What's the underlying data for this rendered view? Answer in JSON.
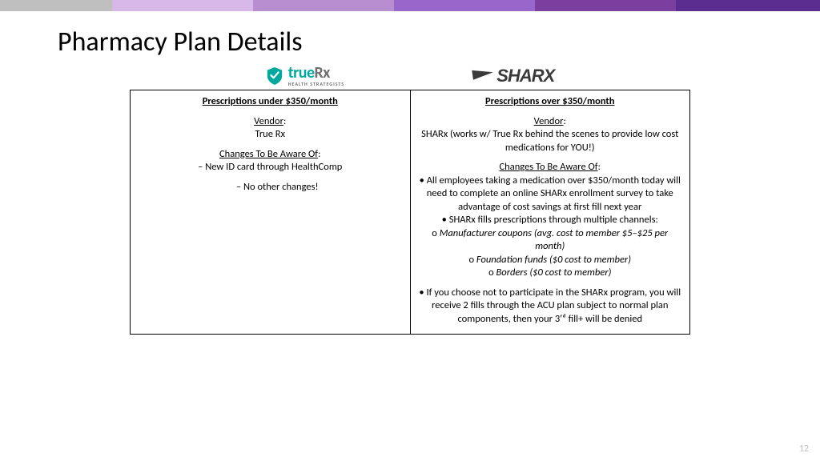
{
  "topbar_colors": [
    "#bfbfbf",
    "#d8b8e8",
    "#b98ed1",
    "#9966cc",
    "#7b3fa0",
    "#5c2d91"
  ],
  "topbar_widths": [
    140,
    176,
    176,
    176,
    176,
    180
  ],
  "title": "Pharmacy Plan Details",
  "logos": {
    "truerx_main_true": "true",
    "truerx_main_rx": "Rx",
    "truerx_sub": "HEALTH STRATEGISTS",
    "sharx": "SHARX"
  },
  "left": {
    "header": "Prescriptions under $350/month",
    "vendor_label": "Vendor",
    "vendor_value": "True Rx",
    "changes_label": "Changes To Be Aware Of",
    "changes": [
      "New ID card through HealthComp"
    ],
    "sub_changes": [
      "No other changes!"
    ]
  },
  "right": {
    "header": "Prescriptions over $350/month",
    "vendor_label": "Vendor",
    "vendor_value": "SHARx (works w/ True Rx behind the scenes to provide low cost medications for YOU!)",
    "changes_label": "Changes To Be Aware Of",
    "bullets": [
      "All employees taking a medication over $350/month today will need to complete an online SHARx enrollment survey to take advantage of cost savings at first fill next year",
      "SHARx fills prescriptions through multiple channels:"
    ],
    "channels": [
      "Manufacturer coupons (avg. cost to member $5–$25 per month)",
      "Foundation funds ($0 cost to member)",
      "Borders ($0 cost to member)"
    ],
    "final_bullet": "If you choose not to participate in the SHARx program, you will receive 2 fills through the ACU plan subject to normal plan components, then your 3ʳᵈ fill+ will be denied"
  },
  "page_number": "12"
}
